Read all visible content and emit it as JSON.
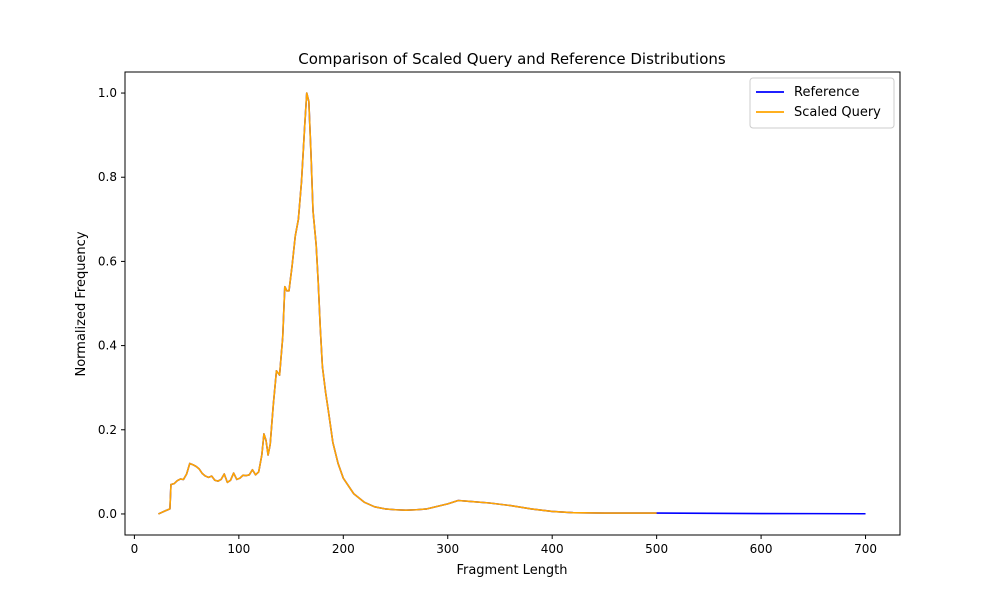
{
  "chart_data": {
    "type": "line",
    "title": "Comparison of Scaled Query and Reference Distributions",
    "xlabel": "Fragment Length",
    "ylabel": "Normalized Frequency",
    "xlim": [
      -9,
      733
    ],
    "ylim": [
      -0.05,
      1.05
    ],
    "xticks": [
      0,
      100,
      200,
      300,
      400,
      500,
      600,
      700
    ],
    "yticks": [
      0.0,
      0.2,
      0.4,
      0.6,
      0.8,
      1.0
    ],
    "ytick_labels": [
      "0.0",
      "0.2",
      "0.4",
      "0.6",
      "0.8",
      "1.0"
    ],
    "grid": false,
    "legend": "top-right",
    "series": [
      {
        "name": "Reference",
        "color": "#0000ff",
        "points": [
          [
            23,
            0.0
          ],
          [
            30,
            0.008
          ],
          [
            34,
            0.012
          ],
          [
            35,
            0.07
          ],
          [
            38,
            0.072
          ],
          [
            41,
            0.079
          ],
          [
            44,
            0.083
          ],
          [
            47,
            0.082
          ],
          [
            50,
            0.095
          ],
          [
            53,
            0.12
          ],
          [
            56,
            0.117
          ],
          [
            59,
            0.113
          ],
          [
            62,
            0.107
          ],
          [
            65,
            0.096
          ],
          [
            68,
            0.09
          ],
          [
            71,
            0.087
          ],
          [
            74,
            0.09
          ],
          [
            77,
            0.08
          ],
          [
            80,
            0.078
          ],
          [
            83,
            0.082
          ],
          [
            86,
            0.095
          ],
          [
            89,
            0.075
          ],
          [
            92,
            0.08
          ],
          [
            95,
            0.097
          ],
          [
            98,
            0.082
          ],
          [
            101,
            0.085
          ],
          [
            104,
            0.092
          ],
          [
            107,
            0.091
          ],
          [
            110,
            0.093
          ],
          [
            113,
            0.105
          ],
          [
            116,
            0.093
          ],
          [
            119,
            0.1
          ],
          [
            122,
            0.14
          ],
          [
            124,
            0.19
          ],
          [
            126,
            0.175
          ],
          [
            128,
            0.14
          ],
          [
            130,
            0.165
          ],
          [
            133,
            0.26
          ],
          [
            136,
            0.34
          ],
          [
            139,
            0.33
          ],
          [
            142,
            0.42
          ],
          [
            144,
            0.54
          ],
          [
            146,
            0.53
          ],
          [
            148,
            0.53
          ],
          [
            151,
            0.59
          ],
          [
            154,
            0.66
          ],
          [
            157,
            0.7
          ],
          [
            160,
            0.79
          ],
          [
            163,
            0.92
          ],
          [
            165,
            1.0
          ],
          [
            167,
            0.98
          ],
          [
            169,
            0.86
          ],
          [
            171,
            0.72
          ],
          [
            174,
            0.64
          ],
          [
            176,
            0.55
          ],
          [
            178,
            0.44
          ],
          [
            180,
            0.35
          ],
          [
            183,
            0.29
          ],
          [
            186,
            0.24
          ],
          [
            190,
            0.17
          ],
          [
            195,
            0.12
          ],
          [
            200,
            0.085
          ],
          [
            210,
            0.048
          ],
          [
            220,
            0.028
          ],
          [
            230,
            0.017
          ],
          [
            240,
            0.012
          ],
          [
            250,
            0.01
          ],
          [
            260,
            0.009
          ],
          [
            270,
            0.01
          ],
          [
            280,
            0.012
          ],
          [
            290,
            0.018
          ],
          [
            300,
            0.024
          ],
          [
            310,
            0.032
          ],
          [
            320,
            0.03
          ],
          [
            340,
            0.026
          ],
          [
            360,
            0.02
          ],
          [
            380,
            0.012
          ],
          [
            400,
            0.006
          ],
          [
            420,
            0.003
          ],
          [
            450,
            0.002
          ],
          [
            500,
            0.002
          ],
          [
            550,
            0.0015
          ],
          [
            600,
            0.001
          ],
          [
            650,
            0.0008
          ],
          [
            700,
            0.0005
          ]
        ]
      },
      {
        "name": "Scaled Query",
        "color": "#ffa500",
        "points": [
          [
            23,
            0.0
          ],
          [
            30,
            0.008
          ],
          [
            34,
            0.012
          ],
          [
            35,
            0.07
          ],
          [
            38,
            0.072
          ],
          [
            41,
            0.079
          ],
          [
            44,
            0.083
          ],
          [
            47,
            0.082
          ],
          [
            50,
            0.095
          ],
          [
            53,
            0.12
          ],
          [
            56,
            0.117
          ],
          [
            59,
            0.113
          ],
          [
            62,
            0.107
          ],
          [
            65,
            0.096
          ],
          [
            68,
            0.09
          ],
          [
            71,
            0.087
          ],
          [
            74,
            0.09
          ],
          [
            77,
            0.08
          ],
          [
            80,
            0.078
          ],
          [
            83,
            0.082
          ],
          [
            86,
            0.095
          ],
          [
            89,
            0.075
          ],
          [
            92,
            0.08
          ],
          [
            95,
            0.097
          ],
          [
            98,
            0.082
          ],
          [
            101,
            0.085
          ],
          [
            104,
            0.092
          ],
          [
            107,
            0.091
          ],
          [
            110,
            0.093
          ],
          [
            113,
            0.105
          ],
          [
            116,
            0.093
          ],
          [
            119,
            0.1
          ],
          [
            122,
            0.14
          ],
          [
            124,
            0.19
          ],
          [
            126,
            0.175
          ],
          [
            128,
            0.14
          ],
          [
            130,
            0.165
          ],
          [
            133,
            0.26
          ],
          [
            136,
            0.34
          ],
          [
            139,
            0.33
          ],
          [
            142,
            0.42
          ],
          [
            144,
            0.54
          ],
          [
            146,
            0.53
          ],
          [
            148,
            0.53
          ],
          [
            151,
            0.59
          ],
          [
            154,
            0.66
          ],
          [
            157,
            0.7
          ],
          [
            160,
            0.79
          ],
          [
            163,
            0.92
          ],
          [
            165,
            1.0
          ],
          [
            167,
            0.98
          ],
          [
            169,
            0.86
          ],
          [
            171,
            0.72
          ],
          [
            174,
            0.64
          ],
          [
            176,
            0.55
          ],
          [
            178,
            0.44
          ],
          [
            180,
            0.35
          ],
          [
            183,
            0.29
          ],
          [
            186,
            0.24
          ],
          [
            190,
            0.17
          ],
          [
            195,
            0.12
          ],
          [
            200,
            0.085
          ],
          [
            210,
            0.048
          ],
          [
            220,
            0.028
          ],
          [
            230,
            0.017
          ],
          [
            240,
            0.012
          ],
          [
            250,
            0.01
          ],
          [
            260,
            0.009
          ],
          [
            270,
            0.01
          ],
          [
            280,
            0.012
          ],
          [
            290,
            0.018
          ],
          [
            300,
            0.024
          ],
          [
            310,
            0.032
          ],
          [
            320,
            0.03
          ],
          [
            340,
            0.026
          ],
          [
            360,
            0.02
          ],
          [
            380,
            0.012
          ],
          [
            400,
            0.006
          ],
          [
            420,
            0.003
          ],
          [
            450,
            0.002
          ],
          [
            500,
            0.002
          ]
        ]
      }
    ]
  }
}
